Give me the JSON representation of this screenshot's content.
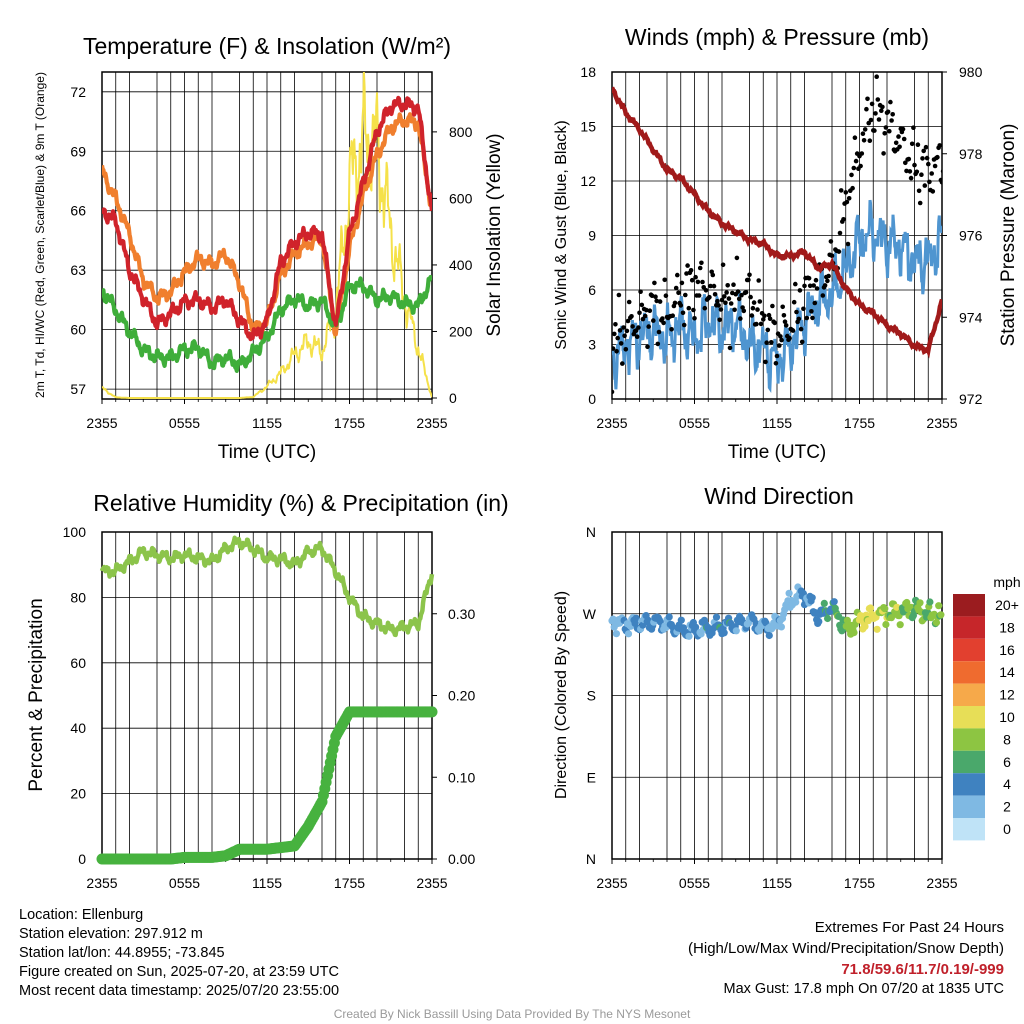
{
  "x_tick_labels": [
    "2355",
    "0555",
    "1155",
    "1755",
    "2355"
  ],
  "colors": {
    "red": "#d0232b",
    "orange": "#f07f2e",
    "green": "#3fae3a",
    "yellow": "#f5e14a",
    "blue": "#4f95d0",
    "black": "#000000",
    "maroon": "#a11a1a",
    "rh_line": "#8cc44b",
    "precip": "#47b23f"
  },
  "chart_data": [
    {
      "id": "temperature",
      "type": "line",
      "title": "Temperature (F) & Insolation (W/m²)",
      "xlabel": "Time (UTC)",
      "ylabel": "2m T, Td, HI/WC (Red, Green, Scarlet/Blue) & 9m T (Orange)",
      "y2label": "Solar Insolation (Yellow)",
      "ylim": [
        56.5,
        73
      ],
      "yticks": [
        57,
        60,
        63,
        66,
        69,
        72
      ],
      "y2lim": [
        -3,
        980
      ],
      "y2ticks": [
        0,
        200,
        400,
        600,
        800
      ],
      "x_hours": [
        0,
        1,
        2,
        3,
        4,
        5,
        6,
        7,
        8,
        9,
        10,
        11,
        12,
        13,
        14,
        15,
        16,
        17,
        18,
        19,
        20,
        21,
        22,
        23,
        24
      ],
      "series": [
        {
          "color_key": "orange",
          "axis": "left",
          "values": [
            68,
            66.6,
            64.8,
            62.5,
            61.6,
            61.9,
            62.9,
            63.6,
            63.3,
            63.8,
            62.4,
            60.0,
            60.4,
            62.8,
            63.8,
            64.4,
            64.6,
            59.8,
            64.1,
            66.8,
            68.8,
            70.2,
            70.6,
            70.4,
            66.0
          ]
        },
        {
          "color_key": "red",
          "axis": "left",
          "values": [
            66,
            65.5,
            63.0,
            61.6,
            60.3,
            60.8,
            61.4,
            61.5,
            61.1,
            61.5,
            60.5,
            59.6,
            60.4,
            63.4,
            64.4,
            64.9,
            64.8,
            60.1,
            64.8,
            67.4,
            70.0,
            71.3,
            71.4,
            71.2,
            65.8
          ]
        },
        {
          "color_key": "green",
          "axis": "left",
          "values": [
            62,
            61.0,
            59.9,
            59.0,
            58.6,
            58.6,
            59.0,
            59.1,
            58.3,
            58.6,
            58.2,
            58.8,
            59.6,
            61.0,
            61.6,
            61.2,
            61.5,
            60.1,
            62.2,
            62.2,
            61.5,
            61.7,
            61.3,
            61.2,
            62.6
          ]
        },
        {
          "color_key": "yellow",
          "axis": "right",
          "values": [
            30,
            2,
            0,
            0,
            0,
            0,
            0,
            0,
            0,
            0,
            0,
            3,
            35,
            75,
            130,
            170,
            140,
            260,
            640,
            780,
            760,
            500,
            300,
            150,
            2
          ]
        }
      ]
    },
    {
      "id": "winds",
      "type": "line",
      "title": "Winds (mph) & Pressure (mb)",
      "xlabel": "Time (UTC)",
      "ylabel": "Sonic Wind & Gust (Blue, Black)",
      "y2label": "Station Pressure (Maroon)",
      "ylim": [
        0,
        18
      ],
      "yticks": [
        0,
        3,
        6,
        9,
        12,
        15,
        18
      ],
      "y2lim": [
        972,
        980
      ],
      "y2ticks": [
        972,
        974,
        976,
        978,
        980
      ],
      "x_hours": [
        0,
        1,
        2,
        3,
        4,
        5,
        6,
        7,
        8,
        9,
        10,
        11,
        12,
        13,
        14,
        15,
        16,
        17,
        18,
        19,
        20,
        21,
        22,
        23,
        24
      ],
      "series": [
        {
          "name": "Wind",
          "color_key": "blue",
          "axis": "left",
          "values": [
            2.1,
            3.0,
            3.4,
            3.8,
            3.2,
            4.2,
            3.3,
            4.4,
            3.9,
            4.2,
            3.0,
            2.8,
            2.0,
            3.0,
            4.3,
            5.4,
            5.8,
            7.2,
            8.8,
            9.2,
            8.6,
            8.4,
            7.5,
            7.6,
            8.7
          ]
        },
        {
          "name": "Gust",
          "color_key": "black",
          "axis": "left",
          "values": [
            3.0,
            3.8,
            4.4,
            5.0,
            4.6,
            5.7,
            6.2,
            6.1,
            5.4,
            5.6,
            5.8,
            4.2,
            3.4,
            4.1,
            5.3,
            6.4,
            7.3,
            10.5,
            13.7,
            16.0,
            15.3,
            14.1,
            12.8,
            12.5,
            13.0
          ]
        },
        {
          "name": "Pressure",
          "color_key": "maroon",
          "axis": "right",
          "values": [
            979.6,
            979.0,
            978.6,
            978.1,
            977.6,
            977.4,
            977.0,
            976.6,
            976.3,
            976.1,
            975.9,
            975.8,
            975.5,
            975.5,
            975.6,
            975.2,
            975.3,
            974.7,
            974.3,
            974.1,
            973.8,
            973.6,
            973.3,
            973.2,
            974.4
          ]
        }
      ]
    },
    {
      "id": "humidity",
      "type": "line",
      "title": "Relative Humidity (%) & Precipitation (in)",
      "xlabel": "",
      "ylabel": "Percent & Precipitation",
      "ylim": [
        0,
        100
      ],
      "yticks": [
        0,
        20,
        40,
        60,
        80,
        100
      ],
      "y2lim": [
        0,
        0.4
      ],
      "y2ticks": [
        0.0,
        0.1,
        0.2,
        0.3
      ],
      "y2tick_labels": [
        "0.00",
        "0.10",
        "0.20",
        "0.30"
      ],
      "x_hours": [
        0,
        1,
        2,
        3,
        4,
        5,
        6,
        7,
        8,
        9,
        10,
        11,
        12,
        13,
        14,
        15,
        16,
        17,
        18,
        19,
        20,
        21,
        22,
        23,
        24
      ],
      "series": [
        {
          "name": "RH",
          "color_key": "rh_line",
          "axis": "left",
          "values": [
            88,
            88,
            91,
            94,
            93,
            92,
            93,
            92,
            91,
            95,
            97,
            95,
            92,
            92,
            90,
            94,
            95,
            88,
            80,
            74,
            72,
            70,
            71,
            72,
            88
          ]
        },
        {
          "name": "Precip",
          "color_key": "precip",
          "axis": "right",
          "values": [
            0.0,
            0.0,
            0.0,
            0.0,
            0.0,
            0.0,
            0.002,
            0.002,
            0.002,
            0.004,
            0.012,
            0.012,
            0.012,
            0.014,
            0.016,
            0.04,
            0.07,
            0.15,
            0.18,
            0.18,
            0.18,
            0.18,
            0.18,
            0.18,
            0.18
          ]
        }
      ]
    },
    {
      "id": "direction",
      "type": "scatter",
      "title": "Wind Direction",
      "ylabel": "Direction (Colored By Speed)",
      "yticks_labels": [
        "N",
        "E",
        "S",
        "W",
        "N"
      ],
      "ylim": [
        0,
        360
      ],
      "x_hours": [
        0,
        1,
        2,
        3,
        4,
        5,
        6,
        7,
        8,
        9,
        10,
        11,
        12,
        13,
        14,
        15,
        16,
        17,
        18,
        19,
        20,
        21,
        22,
        23,
        24
      ],
      "direction_values": [
        262,
        258,
        259,
        262,
        258,
        252,
        252,
        254,
        256,
        258,
        262,
        255,
        258,
        285,
        292,
        266,
        278,
        252,
        262,
        268,
        270,
        272,
        275,
        270,
        268
      ],
      "speed_values": [
        2,
        3,
        3,
        4,
        3,
        4,
        3,
        4,
        4,
        4,
        3,
        3,
        2,
        2,
        3,
        4,
        5,
        7,
        9,
        10,
        8,
        8,
        7,
        7,
        8
      ],
      "legend_title": "mph",
      "legend_labels": [
        "20+",
        "18",
        "16",
        "14",
        "12",
        "10",
        "8",
        "6",
        "4",
        "2",
        "0"
      ],
      "legend_colors": [
        "#9b1c1f",
        "#c6262a",
        "#e2402f",
        "#ef6b2f",
        "#f6a94a",
        "#e7de57",
        "#8dc542",
        "#4aa86b",
        "#3f82c0",
        "#7fb9e3",
        "#bfe3f7"
      ]
    }
  ],
  "info_left": [
    "Location: Ellenburg",
    "Station elevation: 297.912 m",
    "Station lat/lon: 44.8955; -73.845",
    "Figure created on Sun, 2025-07-20, at 23:59 UTC",
    "Most recent data timestamp: 2025/07/20 23:55:00"
  ],
  "extremes": {
    "title": "Extremes For Past 24 Hours",
    "subtitle": "(High/Low/Max Wind/Precipitation/Snow Depth)",
    "values": "71.8/59.6/11.7/0.19/-999",
    "max_gust": "Max Gust: 17.8 mph On 07/20 at 1835 UTC"
  },
  "credit": "Created By Nick Bassill Using Data Provided By The NYS Mesonet"
}
